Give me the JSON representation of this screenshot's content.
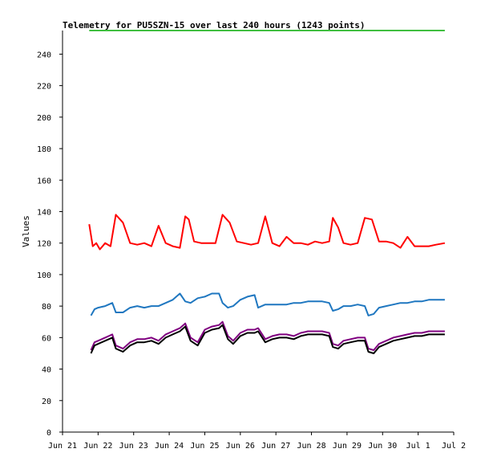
{
  "chart_data": {
    "type": "line",
    "title": "Telemetry for PU5SZN-15 over last 240 hours (1243 points)",
    "ylabel": "Values",
    "xlabel": "",
    "ylim": [
      0,
      255
    ],
    "yticks": [
      0,
      20,
      40,
      60,
      80,
      100,
      120,
      140,
      160,
      180,
      200,
      220,
      240
    ],
    "xlim": [
      "Jun 21",
      "Jul 2"
    ],
    "xticks": [
      "Jun 21",
      "Jun 22",
      "Jun 23",
      "Jun 24",
      "Jun 25",
      "Jun 26",
      "Jun 27",
      "Jun 28",
      "Jun 29",
      "Jun 30",
      "Jul 1",
      "Jul 2"
    ],
    "grid": false,
    "x_unit": "day index from Jun 21 (0 = Jun 21, 11 = Jul 2)",
    "series": [
      {
        "color": "#00aa00",
        "x": [
          0.75,
          10.75
        ],
        "values": [
          255,
          255
        ]
      },
      {
        "color": "#ff0000",
        "x": [
          0.75,
          0.85,
          0.95,
          1.05,
          1.2,
          1.35,
          1.5,
          1.7,
          1.9,
          2.1,
          2.3,
          2.5,
          2.7,
          2.9,
          3.1,
          3.3,
          3.45,
          3.55,
          3.7,
          3.9,
          4.1,
          4.3,
          4.5,
          4.7,
          4.9,
          5.1,
          5.3,
          5.5,
          5.7,
          5.9,
          6.1,
          6.3,
          6.5,
          6.7,
          6.9,
          7.1,
          7.3,
          7.5,
          7.6,
          7.75,
          7.9,
          8.1,
          8.3,
          8.5,
          8.7,
          8.9,
          9.1,
          9.3,
          9.5,
          9.7,
          9.9,
          10.1,
          10.3,
          10.5,
          10.75
        ],
        "values": [
          132,
          118,
          120,
          116,
          120,
          118,
          138,
          133,
          120,
          119,
          120,
          118,
          131,
          120,
          118,
          117,
          137,
          135,
          121,
          120,
          120,
          120,
          138,
          133,
          121,
          120,
          119,
          120,
          137,
          120,
          118,
          124,
          120,
          120,
          119,
          121,
          120,
          121,
          136,
          130,
          120,
          119,
          120,
          136,
          135,
          121,
          121,
          120,
          117,
          124,
          118,
          118,
          118,
          119,
          120
        ]
      },
      {
        "color": "#1f77c0",
        "x": [
          0.8,
          0.9,
          1.0,
          1.2,
          1.4,
          1.5,
          1.7,
          1.9,
          2.1,
          2.3,
          2.5,
          2.7,
          2.9,
          3.1,
          3.3,
          3.45,
          3.6,
          3.8,
          4.0,
          4.2,
          4.4,
          4.5,
          4.65,
          4.8,
          5.0,
          5.2,
          5.4,
          5.5,
          5.7,
          5.9,
          6.1,
          6.3,
          6.5,
          6.7,
          6.9,
          7.1,
          7.3,
          7.5,
          7.6,
          7.75,
          7.9,
          8.1,
          8.3,
          8.5,
          8.6,
          8.75,
          8.9,
          9.1,
          9.3,
          9.5,
          9.7,
          9.9,
          10.1,
          10.3,
          10.5,
          10.75
        ],
        "values": [
          74,
          78,
          79,
          80,
          82,
          76,
          76,
          79,
          80,
          79,
          80,
          80,
          82,
          84,
          88,
          83,
          82,
          85,
          86,
          88,
          88,
          82,
          79,
          80,
          84,
          86,
          87,
          79,
          81,
          81,
          81,
          81,
          82,
          82,
          83,
          83,
          83,
          82,
          77,
          78,
          80,
          80,
          81,
          80,
          74,
          75,
          79,
          80,
          81,
          82,
          82,
          83,
          83,
          84,
          84,
          84
        ]
      },
      {
        "color": "#800080",
        "x": [
          0.8,
          0.9,
          1.0,
          1.2,
          1.4,
          1.5,
          1.7,
          1.9,
          2.1,
          2.3,
          2.5,
          2.7,
          2.9,
          3.1,
          3.3,
          3.45,
          3.6,
          3.8,
          4.0,
          4.2,
          4.4,
          4.5,
          4.65,
          4.8,
          5.0,
          5.2,
          5.4,
          5.5,
          5.7,
          5.9,
          6.1,
          6.3,
          6.5,
          6.7,
          6.9,
          7.1,
          7.3,
          7.5,
          7.6,
          7.75,
          7.9,
          8.1,
          8.3,
          8.5,
          8.6,
          8.75,
          8.9,
          9.1,
          9.3,
          9.5,
          9.7,
          9.9,
          10.1,
          10.3,
          10.5,
          10.75
        ],
        "values": [
          52,
          57,
          58,
          60,
          62,
          55,
          53,
          57,
          59,
          59,
          60,
          58,
          62,
          64,
          66,
          69,
          60,
          57,
          65,
          67,
          68,
          70,
          61,
          58,
          63,
          65,
          65,
          66,
          59,
          61,
          62,
          62,
          61,
          63,
          64,
          64,
          64,
          63,
          56,
          55,
          58,
          59,
          60,
          60,
          53,
          52,
          56,
          58,
          60,
          61,
          62,
          63,
          63,
          64,
          64,
          64
        ]
      },
      {
        "color": "#000000",
        "x": [
          0.8,
          0.9,
          1.0,
          1.2,
          1.4,
          1.5,
          1.7,
          1.9,
          2.1,
          2.3,
          2.5,
          2.7,
          2.9,
          3.1,
          3.3,
          3.45,
          3.6,
          3.8,
          4.0,
          4.2,
          4.4,
          4.5,
          4.65,
          4.8,
          5.0,
          5.2,
          5.4,
          5.5,
          5.7,
          5.9,
          6.1,
          6.3,
          6.5,
          6.7,
          6.9,
          7.1,
          7.3,
          7.5,
          7.6,
          7.75,
          7.9,
          8.1,
          8.3,
          8.5,
          8.6,
          8.75,
          8.9,
          9.1,
          9.3,
          9.5,
          9.7,
          9.9,
          10.1,
          10.3,
          10.5,
          10.75
        ],
        "values": [
          50,
          55,
          56,
          58,
          60,
          53,
          51,
          55,
          57,
          57,
          58,
          56,
          60,
          62,
          64,
          67,
          58,
          55,
          63,
          65,
          66,
          68,
          59,
          56,
          61,
          63,
          63,
          64,
          57,
          59,
          60,
          60,
          59,
          61,
          62,
          62,
          62,
          61,
          54,
          53,
          56,
          57,
          58,
          58,
          51,
          50,
          54,
          56,
          58,
          59,
          60,
          61,
          61,
          62,
          62,
          62
        ]
      }
    ]
  }
}
